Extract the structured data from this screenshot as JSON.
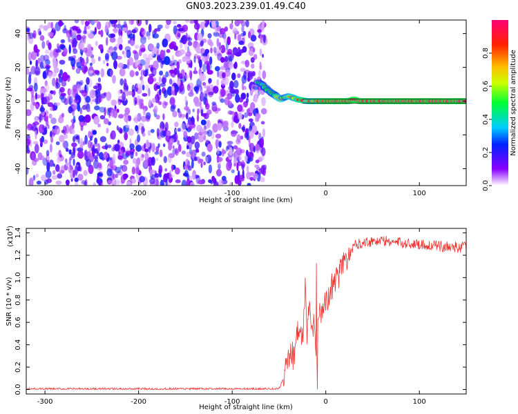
{
  "figure": {
    "title": "GN03.2023.239.01.49.C40"
  },
  "chart_data": [
    {
      "type": "heatmap",
      "xlabel": "Height of straight line (km)",
      "ylabel": "Frequency (Hz)",
      "xlim": [
        -320,
        150
      ],
      "ylim": [
        -50,
        48
      ],
      "xticks": [
        -300,
        -200,
        -100,
        0,
        100
      ],
      "yticks": [
        -40,
        -20,
        0,
        20,
        40
      ],
      "noise_region_x": [
        -320,
        -65
      ],
      "signal_track": {
        "x": [
          -72,
          -68,
          -63,
          -58,
          -53,
          -48,
          -45,
          -40,
          -35,
          -30,
          -25,
          -20,
          -10,
          0,
          10,
          20,
          25,
          30,
          35,
          40,
          60,
          80,
          100,
          110,
          120,
          150
        ],
        "y": [
          11,
          10,
          7,
          5,
          3,
          1,
          2,
          3,
          2,
          1,
          0.5,
          0,
          0,
          0,
          0,
          0,
          0,
          1,
          0,
          0,
          0,
          0,
          0,
          0,
          0,
          0
        ]
      },
      "colorbar": {
        "label": "Normalized spectral amplitude",
        "range": [
          0.0,
          1.0
        ],
        "ticks": [
          "0.0",
          "0.2",
          "0.4",
          "0.6",
          "0.8"
        ]
      }
    },
    {
      "type": "line",
      "xlabel": "Height of straight line (km)",
      "ylabel": "SNR (10 * v/v)",
      "y_multiplier_base": "(x10",
      "y_multiplier_exp": "4",
      "y_multiplier_close": ")",
      "xlim": [
        -320,
        150
      ],
      "ylim": [
        -0.04,
        1.44
      ],
      "xticks": [
        -300,
        -200,
        -100,
        0,
        100
      ],
      "yticks": [
        0.0,
        0.2,
        0.4,
        0.6,
        0.8,
        1.0,
        1.2,
        1.4
      ],
      "color": "#ee3333",
      "series": [
        {
          "x": [
            -320,
            -100,
            -50,
            -45,
            -42,
            -40,
            -38,
            -35,
            -32,
            -30,
            -28,
            -25,
            -22,
            -20,
            -18,
            -15,
            -12,
            -10,
            -8,
            -5,
            -2,
            0,
            5,
            10,
            15,
            20,
            25,
            30,
            40,
            60,
            80,
            100,
            120,
            150
          ],
          "y": [
            0.0,
            0.0,
            0.0,
            0.1,
            0.3,
            0.25,
            0.35,
            0.3,
            0.4,
            0.5,
            0.55,
            0.45,
            0.9,
            0.5,
            0.7,
            0.55,
            0.6,
            0.2,
            0.75,
            0.65,
            0.8,
            0.75,
            0.9,
            0.95,
            1.05,
            1.15,
            1.2,
            1.28,
            1.32,
            1.33,
            1.31,
            1.3,
            1.28,
            1.27
          ]
        }
      ]
    }
  ]
}
